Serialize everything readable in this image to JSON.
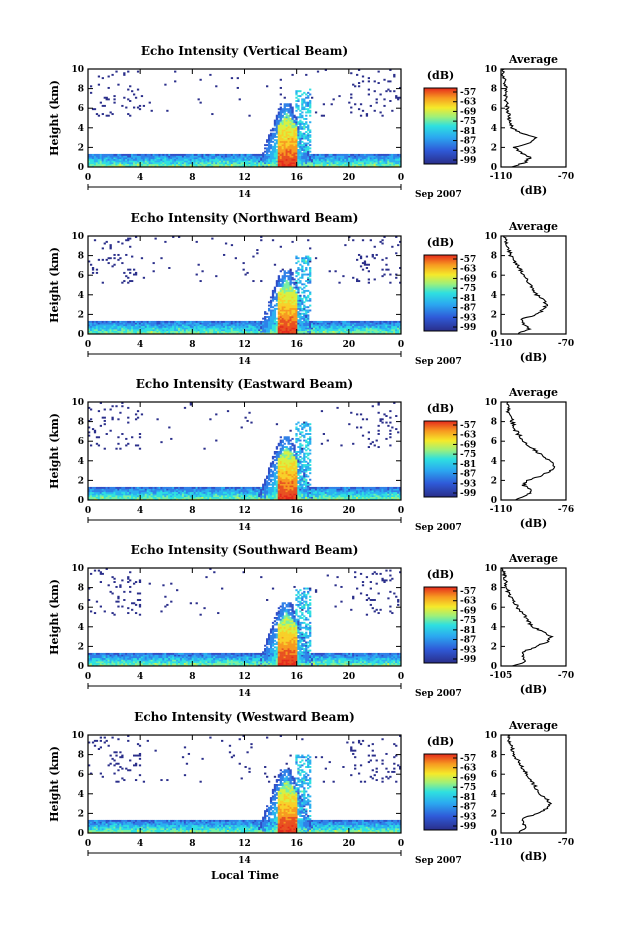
{
  "figure": {
    "xlabel": "Local Time",
    "date_label": "Sep 2007",
    "day_label": "14",
    "ylabel": "Height (km)",
    "avg_title": "Average",
    "avg_xlabel": "(dB)",
    "cbar_unit": "(dB)",
    "x_ticks": [
      "0",
      "4",
      "8",
      "12",
      "16",
      "20",
      "0"
    ],
    "y_ticks": [
      "0",
      "2",
      "4",
      "6",
      "8",
      "10"
    ],
    "cbar_ticks": [
      "-57",
      "-63",
      "-69",
      "-75",
      "-81",
      "-87",
      "-93",
      "-99"
    ]
  },
  "chart_data": [
    {
      "type": "heatmap",
      "title": "Echo Intensity (Vertical Beam)",
      "xlim": [
        0,
        24
      ],
      "ylim": [
        0,
        10
      ],
      "clim": [
        -99,
        -57
      ],
      "avg_xtick_labels": [
        "-110",
        "-70"
      ],
      "avg_xlim": [
        -110,
        -70
      ],
      "avg_profile": [
        [
          0,
          -103
        ],
        [
          0.5,
          -95
        ],
        [
          1.0,
          -92
        ],
        [
          1.5,
          -98
        ],
        [
          2.0,
          -102
        ],
        [
          2.5,
          -92
        ],
        [
          3.0,
          -88
        ],
        [
          3.5,
          -98
        ],
        [
          4.0,
          -103
        ],
        [
          5.0,
          -105
        ],
        [
          6.0,
          -106
        ],
        [
          7.0,
          -107
        ],
        [
          8.0,
          -107
        ],
        [
          9.0,
          -108
        ],
        [
          10.0,
          -109
        ]
      ]
    },
    {
      "type": "heatmap",
      "title": "Echo Intensity (Northward Beam)",
      "xlim": [
        0,
        24
      ],
      "ylim": [
        0,
        10
      ],
      "clim": [
        -99,
        -57
      ],
      "avg_xtick_labels": [
        "-110",
        "-70"
      ],
      "avg_xlim": [
        -110,
        -70
      ],
      "avg_profile": [
        [
          0,
          -100
        ],
        [
          0.5,
          -92
        ],
        [
          1.0,
          -96
        ],
        [
          1.5,
          -98
        ],
        [
          2.0,
          -88
        ],
        [
          2.5,
          -84
        ],
        [
          3.0,
          -82
        ],
        [
          3.5,
          -84
        ],
        [
          4.0,
          -88
        ],
        [
          5.0,
          -92
        ],
        [
          6.0,
          -96
        ],
        [
          7.0,
          -100
        ],
        [
          8.0,
          -104
        ],
        [
          9.0,
          -106
        ],
        [
          10.0,
          -108
        ]
      ]
    },
    {
      "type": "heatmap",
      "title": "Echo Intensity (Eastward Beam)",
      "xlim": [
        0,
        24
      ],
      "ylim": [
        0,
        10
      ],
      "clim": [
        -99,
        -57
      ],
      "avg_xtick_labels": [
        "-110",
        "-76"
      ],
      "avg_xlim": [
        -110,
        -76
      ],
      "avg_profile": [
        [
          0,
          -102
        ],
        [
          0.5,
          -96
        ],
        [
          1.0,
          -94
        ],
        [
          1.5,
          -98
        ],
        [
          2.0,
          -96
        ],
        [
          2.5,
          -88
        ],
        [
          3.0,
          -84
        ],
        [
          3.5,
          -82
        ],
        [
          4.0,
          -84
        ],
        [
          5.0,
          -92
        ],
        [
          6.0,
          -98
        ],
        [
          7.0,
          -102
        ],
        [
          8.0,
          -104
        ],
        [
          9.0,
          -106
        ],
        [
          10.0,
          -107
        ]
      ]
    },
    {
      "type": "heatmap",
      "title": "Echo Intensity (Southward Beam)",
      "xlim": [
        0,
        24
      ],
      "ylim": [
        0,
        10
      ],
      "clim": [
        -99,
        -57
      ],
      "avg_xtick_labels": [
        "-105",
        "-70"
      ],
      "avg_xlim": [
        -105,
        -70
      ],
      "avg_profile": [
        [
          0,
          -98
        ],
        [
          0.5,
          -92
        ],
        [
          1.0,
          -94
        ],
        [
          1.5,
          -92
        ],
        [
          2.0,
          -86
        ],
        [
          2.5,
          -80
        ],
        [
          3.0,
          -78
        ],
        [
          3.5,
          -82
        ],
        [
          4.0,
          -88
        ],
        [
          5.0,
          -92
        ],
        [
          6.0,
          -96
        ],
        [
          7.0,
          -100
        ],
        [
          8.0,
          -102
        ],
        [
          9.0,
          -103
        ],
        [
          10.0,
          -104
        ]
      ]
    },
    {
      "type": "heatmap",
      "title": "Echo Intensity (Westward Beam)",
      "xlim": [
        0,
        24
      ],
      "ylim": [
        0,
        10
      ],
      "clim": [
        -99,
        -57
      ],
      "avg_xtick_labels": [
        "-110",
        "-70"
      ],
      "avg_xlim": [
        -110,
        -70
      ],
      "avg_profile": [
        [
          0,
          -100
        ],
        [
          0.5,
          -94
        ],
        [
          1.0,
          -96
        ],
        [
          1.5,
          -96
        ],
        [
          2.0,
          -88
        ],
        [
          2.5,
          -82
        ],
        [
          3.0,
          -80
        ],
        [
          3.5,
          -82
        ],
        [
          4.0,
          -86
        ],
        [
          5.0,
          -90
        ],
        [
          6.0,
          -94
        ],
        [
          7.0,
          -98
        ],
        [
          8.0,
          -102
        ],
        [
          9.0,
          -104
        ],
        [
          10.0,
          -106
        ]
      ]
    }
  ]
}
